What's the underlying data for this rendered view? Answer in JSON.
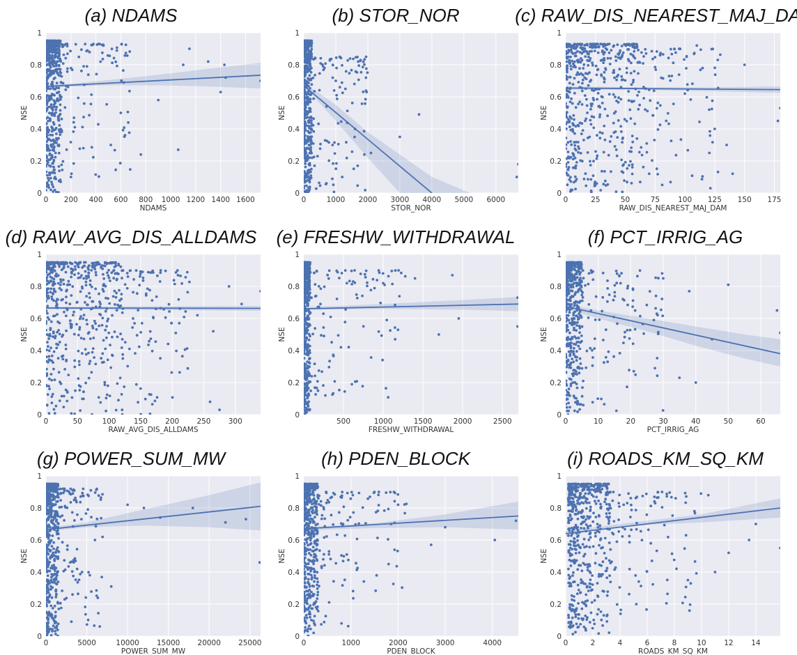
{
  "figure": {
    "panel_count": 9,
    "point_color": "#4c72b0",
    "line_color": "#4c72b0",
    "band_color": "#4c72b0",
    "plot_background": "#eaeaf2",
    "grid_color": "#ffffff"
  },
  "chart_data": [
    {
      "type": "scatter",
      "title": "(a) NDAMS",
      "xlabel": "NDAMS",
      "ylabel": "NSE",
      "xlim": [
        0,
        1720
      ],
      "ylim": [
        0,
        1.0
      ],
      "xticks": [
        0,
        200,
        400,
        600,
        800,
        1000,
        1200,
        1400,
        1600
      ],
      "yticks": [
        0.0,
        0.2,
        0.4,
        0.6,
        0.8,
        1.0
      ],
      "grid": true,
      "regression": {
        "x": [
          0,
          1720
        ],
        "y": [
          0.665,
          0.735
        ]
      },
      "confidence_band": {
        "x": [
          0,
          200,
          500,
          900,
          1300,
          1720
        ],
        "lower": [
          0.655,
          0.665,
          0.672,
          0.672,
          0.665,
          0.652
        ],
        "upper": [
          0.675,
          0.682,
          0.705,
          0.738,
          0.775,
          0.812
        ]
      },
      "highlighted_points": [
        {
          "x": 380,
          "y": 0.93
        },
        {
          "x": 1150,
          "y": 0.9
        },
        {
          "x": 1100,
          "y": 0.8
        },
        {
          "x": 1300,
          "y": 0.82
        },
        {
          "x": 1430,
          "y": 0.8
        },
        {
          "x": 1440,
          "y": 0.72
        },
        {
          "x": 1720,
          "y": 0.7
        },
        {
          "x": 1400,
          "y": 0.63
        },
        {
          "x": 900,
          "y": 0.58
        },
        {
          "x": 520,
          "y": 0.3
        },
        {
          "x": 760,
          "y": 0.24
        },
        {
          "x": 1060,
          "y": 0.27
        },
        {
          "x": 600,
          "y": 0.5
        },
        {
          "x": 300,
          "y": 0.28
        },
        {
          "x": 200,
          "y": 0.1
        }
      ],
      "dense_cluster": {
        "x_range": [
          0,
          120
        ],
        "y_range": [
          0.0,
          0.95
        ],
        "sparse_x_range": [
          120,
          700
        ],
        "sparse_y_range": [
          0.05,
          0.93
        ]
      }
    },
    {
      "type": "scatter",
      "title": "(b) STOR_NOR",
      "xlabel": "STOR_NOR",
      "ylabel": "NSE",
      "xlim": [
        0,
        6700
      ],
      "ylim": [
        0,
        1.0
      ],
      "xticks": [
        0,
        1000,
        2000,
        3000,
        4000,
        5000,
        6000
      ],
      "yticks": [
        0.0,
        0.2,
        0.4,
        0.6,
        0.8,
        1.0
      ],
      "grid": true,
      "regression": {
        "x": [
          0,
          4000
        ],
        "y": [
          0.67,
          0.0
        ]
      },
      "confidence_band": {
        "x": [
          0,
          500,
          1000,
          2000,
          3000,
          4000,
          5200
        ],
        "lower": [
          0.66,
          0.56,
          0.45,
          0.22,
          0.0,
          0.0,
          0.0
        ],
        "upper": [
          0.68,
          0.62,
          0.55,
          0.38,
          0.24,
          0.1,
          0.0
        ]
      },
      "highlighted_points": [
        {
          "x": 1700,
          "y": 0.82
        },
        {
          "x": 3600,
          "y": 0.49
        },
        {
          "x": 3000,
          "y": 0.35
        },
        {
          "x": 6700,
          "y": 0.18
        },
        {
          "x": 6650,
          "y": 0.1
        },
        {
          "x": 1600,
          "y": 0.4
        },
        {
          "x": 2100,
          "y": 0.25
        },
        {
          "x": 1300,
          "y": 0.65
        },
        {
          "x": 1000,
          "y": 0.7
        },
        {
          "x": 900,
          "y": 0.3
        },
        {
          "x": 1200,
          "y": 0.1
        }
      ],
      "dense_cluster": {
        "x_range": [
          0,
          250
        ],
        "y_range": [
          0.0,
          0.95
        ],
        "sparse_x_range": [
          250,
          2000
        ],
        "sparse_y_range": [
          0.0,
          0.85
        ]
      }
    },
    {
      "type": "scatter",
      "title": "(c) RAW_DIS_NEAREST_MAJ_DAM",
      "xlabel": "RAW_DIS_NEAREST_MAJ_DAM",
      "ylabel": "NSE",
      "xlim": [
        0,
        180
      ],
      "ylim": [
        0,
        1.0
      ],
      "xticks": [
        0,
        25,
        50,
        75,
        100,
        125,
        150,
        175
      ],
      "yticks": [
        0.0,
        0.2,
        0.4,
        0.6,
        0.8,
        1.0
      ],
      "grid": true,
      "regression": {
        "x": [
          0,
          180
        ],
        "y": [
          0.655,
          0.645
        ]
      },
      "confidence_band": {
        "x": [
          0,
          60,
          120,
          180
        ],
        "lower": [
          0.645,
          0.645,
          0.635,
          0.625
        ],
        "upper": [
          0.665,
          0.66,
          0.66,
          0.665
        ]
      },
      "highlighted_points": [
        {
          "x": 110,
          "y": 0.92
        },
        {
          "x": 150,
          "y": 0.8
        },
        {
          "x": 180,
          "y": 0.53
        },
        {
          "x": 178,
          "y": 0.45
        },
        {
          "x": 135,
          "y": 0.3
        },
        {
          "x": 125,
          "y": 0.4
        },
        {
          "x": 140,
          "y": 0.12
        },
        {
          "x": 100,
          "y": 0.62
        }
      ],
      "dense_cluster": {
        "x_range": [
          0,
          60
        ],
        "y_range": [
          0.0,
          0.93
        ],
        "sparse_x_range": [
          60,
          130
        ],
        "sparse_y_range": [
          0.02,
          0.9
        ]
      }
    },
    {
      "type": "scatter",
      "title": "(d) RAW_AVG_DIS_ALLDAMS",
      "xlabel": "RAW_AVG_DIS_ALLDAMS",
      "ylabel": "NSE",
      "xlim": [
        0,
        340
      ],
      "ylim": [
        0,
        1.0
      ],
      "xticks": [
        0,
        50,
        100,
        150,
        200,
        250,
        300
      ],
      "yticks": [
        0.0,
        0.2,
        0.4,
        0.6,
        0.8,
        1.0
      ],
      "grid": true,
      "regression": {
        "x": [
          0,
          340
        ],
        "y": [
          0.665,
          0.663
        ]
      },
      "confidence_band": {
        "x": [
          0,
          340
        ],
        "lower": [
          0.658,
          0.648
        ],
        "upper": [
          0.672,
          0.678
        ]
      },
      "highlighted_points": [
        {
          "x": 340,
          "y": 0.77
        },
        {
          "x": 310,
          "y": 0.69
        },
        {
          "x": 290,
          "y": 0.8
        },
        {
          "x": 265,
          "y": 0.52
        },
        {
          "x": 260,
          "y": 0.08
        },
        {
          "x": 275,
          "y": 0.03
        },
        {
          "x": 240,
          "y": 0.62
        }
      ],
      "dense_cluster": {
        "x_range": [
          0,
          120
        ],
        "y_range": [
          0.0,
          0.95
        ],
        "sparse_x_range": [
          120,
          230
        ],
        "sparse_y_range": [
          0.0,
          0.9
        ]
      }
    },
    {
      "type": "scatter",
      "title": "(e) FRESHW_WITHDRAWAL",
      "xlabel": "FRESHW_WITHDRAWAL",
      "ylabel": "NSE",
      "xlim": [
        0,
        2700
      ],
      "ylim": [
        0,
        1.0
      ],
      "xticks": [
        500,
        1000,
        1500,
        2000,
        2500
      ],
      "yticks": [
        0.0,
        0.2,
        0.4,
        0.6,
        0.8,
        1.0
      ],
      "grid": true,
      "regression": {
        "x": [
          0,
          2700
        ],
        "y": [
          0.66,
          0.69
        ]
      },
      "confidence_band": {
        "x": [
          0,
          1000,
          2000,
          2700
        ],
        "lower": [
          0.655,
          0.66,
          0.655,
          0.645
        ],
        "upper": [
          0.67,
          0.69,
          0.715,
          0.735
        ]
      },
      "highlighted_points": [
        {
          "x": 1870,
          "y": 0.87
        },
        {
          "x": 2690,
          "y": 0.73
        },
        {
          "x": 2690,
          "y": 0.55
        },
        {
          "x": 1950,
          "y": 0.6
        },
        {
          "x": 1700,
          "y": 0.5
        },
        {
          "x": 1150,
          "y": 0.47
        },
        {
          "x": 1400,
          "y": 0.85
        },
        {
          "x": 1000,
          "y": 0.82
        }
      ],
      "dense_cluster": {
        "x_range": [
          0,
          80
        ],
        "y_range": [
          0.0,
          0.95
        ],
        "sparse_x_range": [
          80,
          1300
        ],
        "sparse_y_range": [
          0.1,
          0.9
        ]
      }
    },
    {
      "type": "scatter",
      "title": "(f) PCT_IRRIG_AG",
      "xlabel": "PCT_IRRIG_AG",
      "ylabel": "NSE",
      "xlim": [
        0,
        66
      ],
      "ylim": [
        0,
        1.0
      ],
      "xticks": [
        0,
        10,
        20,
        30,
        40,
        50,
        60
      ],
      "yticks": [
        0.0,
        0.2,
        0.4,
        0.6,
        0.8,
        1.0
      ],
      "grid": true,
      "regression": {
        "x": [
          0,
          66
        ],
        "y": [
          0.675,
          0.38
        ]
      },
      "confidence_band": {
        "x": [
          0,
          10,
          25,
          40,
          55,
          66
        ],
        "lower": [
          0.66,
          0.6,
          0.52,
          0.43,
          0.35,
          0.3
        ],
        "upper": [
          0.69,
          0.65,
          0.6,
          0.55,
          0.5,
          0.47
        ]
      },
      "highlighted_points": [
        {
          "x": 38,
          "y": 0.77
        },
        {
          "x": 50,
          "y": 0.81
        },
        {
          "x": 65,
          "y": 0.65
        },
        {
          "x": 66,
          "y": 0.51
        },
        {
          "x": 45,
          "y": 0.47
        },
        {
          "x": 40,
          "y": 0.2
        },
        {
          "x": 35,
          "y": 0.23
        },
        {
          "x": 28,
          "y": 0.63
        },
        {
          "x": 30,
          "y": 0.85
        }
      ],
      "dense_cluster": {
        "x_range": [
          0,
          5
        ],
        "y_range": [
          0.0,
          0.95
        ],
        "sparse_x_range": [
          5,
          30
        ],
        "sparse_y_range": [
          0.0,
          0.9
        ]
      }
    },
    {
      "type": "scatter",
      "title": "(g) POWER_SUM_MW",
      "xlabel": "POWER_SUM_MW",
      "ylabel": "NSE",
      "xlim": [
        0,
        26300
      ],
      "ylim": [
        0,
        1.0
      ],
      "xticks": [
        0,
        5000,
        10000,
        15000,
        20000,
        25000
      ],
      "yticks": [
        0.0,
        0.2,
        0.4,
        0.6,
        0.8,
        1.0
      ],
      "grid": true,
      "regression": {
        "x": [
          0,
          26300
        ],
        "y": [
          0.665,
          0.81
        ]
      },
      "confidence_band": {
        "x": [
          0,
          5000,
          12000,
          20000,
          26300
        ],
        "lower": [
          0.655,
          0.68,
          0.69,
          0.68,
          0.66
        ],
        "upper": [
          0.675,
          0.71,
          0.79,
          0.88,
          0.96
        ]
      },
      "highlighted_points": [
        {
          "x": 10000,
          "y": 0.82
        },
        {
          "x": 12000,
          "y": 0.8
        },
        {
          "x": 14000,
          "y": 0.74
        },
        {
          "x": 18000,
          "y": 0.8
        },
        {
          "x": 22000,
          "y": 0.71
        },
        {
          "x": 24500,
          "y": 0.73
        },
        {
          "x": 26200,
          "y": 0.46
        },
        {
          "x": 8000,
          "y": 0.31
        },
        {
          "x": 6000,
          "y": 0.6
        },
        {
          "x": 5500,
          "y": 0.91
        }
      ],
      "dense_cluster": {
        "x_range": [
          0,
          1500
        ],
        "y_range": [
          0.0,
          0.95
        ],
        "sparse_x_range": [
          1500,
          7000
        ],
        "sparse_y_range": [
          0.05,
          0.92
        ]
      }
    },
    {
      "type": "scatter",
      "title": "(h) PDEN_BLOCK",
      "xlabel": "PDEN_BLOCK",
      "ylabel": "NSE",
      "xlim": [
        0,
        4550
      ],
      "ylim": [
        0,
        1.0
      ],
      "xticks": [
        0,
        1000,
        2000,
        3000,
        4000
      ],
      "yticks": [
        0.0,
        0.2,
        0.4,
        0.6,
        0.8,
        1.0
      ],
      "grid": true,
      "regression": {
        "x": [
          0,
          4550
        ],
        "y": [
          0.67,
          0.75
        ]
      },
      "confidence_band": {
        "x": [
          0,
          1500,
          3000,
          4550
        ],
        "lower": [
          0.66,
          0.675,
          0.68,
          0.665
        ],
        "upper": [
          0.68,
          0.705,
          0.76,
          0.84
        ]
      },
      "highlighted_points": [
        {
          "x": 4050,
          "y": 0.6
        },
        {
          "x": 4500,
          "y": 0.72
        },
        {
          "x": 3000,
          "y": 0.68
        },
        {
          "x": 2700,
          "y": 0.57
        },
        {
          "x": 2000,
          "y": 0.82
        },
        {
          "x": 1800,
          "y": 0.45
        },
        {
          "x": 800,
          "y": 0.08
        }
      ],
      "dense_cluster": {
        "x_range": [
          0,
          300
        ],
        "y_range": [
          0.0,
          0.95
        ],
        "sparse_x_range": [
          300,
          2200
        ],
        "sparse_y_range": [
          0.05,
          0.9
        ]
      }
    },
    {
      "type": "scatter",
      "title": "(i) ROADS_KM_SQ_KM",
      "xlabel": "ROADS_KM_SQ_KM",
      "ylabel": "NSE",
      "xlim": [
        0,
        15.8
      ],
      "ylim": [
        0,
        1.0
      ],
      "xticks": [
        0,
        2,
        4,
        6,
        8,
        10,
        12,
        14
      ],
      "yticks": [
        0.0,
        0.2,
        0.4,
        0.6,
        0.8,
        1.0
      ],
      "grid": true,
      "regression": {
        "x": [
          0,
          15.8
        ],
        "y": [
          0.64,
          0.8
        ]
      },
      "confidence_band": {
        "x": [
          0,
          2,
          6,
          10,
          15.8
        ],
        "lower": [
          0.625,
          0.66,
          0.695,
          0.71,
          0.74
        ],
        "upper": [
          0.655,
          0.68,
          0.72,
          0.76,
          0.86
        ]
      },
      "highlighted_points": [
        {
          "x": 15.8,
          "y": 0.55
        },
        {
          "x": 13.5,
          "y": 0.6
        },
        {
          "x": 12,
          "y": 0.52
        },
        {
          "x": 14,
          "y": 0.7
        },
        {
          "x": 10.5,
          "y": 0.88
        },
        {
          "x": 9,
          "y": 0.35
        },
        {
          "x": 5.2,
          "y": 0.2
        },
        {
          "x": 11,
          "y": 0.4
        }
      ],
      "dense_cluster": {
        "x_range": [
          0.2,
          3.2
        ],
        "y_range": [
          0.0,
          0.95
        ],
        "sparse_x_range": [
          3.2,
          10
        ],
        "sparse_y_range": [
          0.1,
          0.9
        ]
      }
    }
  ]
}
